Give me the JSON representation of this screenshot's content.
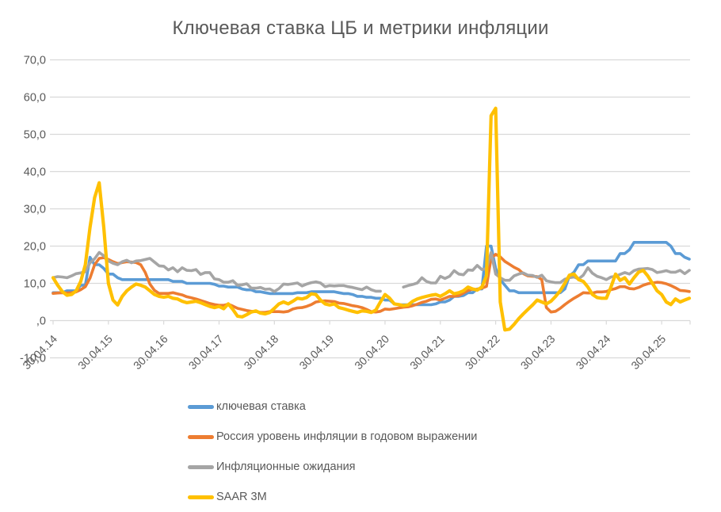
{
  "colors": {
    "blue": "#5B9BD5",
    "orange": "#ED7D31",
    "gray": "#A5A5A5",
    "yellow": "#FFC000",
    "gridline": "#D9D9D9",
    "tick": "#D9D9D9",
    "axis_text": "#595959",
    "title_text": "#595959"
  },
  "chart_data": {
    "type": "line",
    "title": "Ключевая ставка ЦБ и метрики инфляции",
    "grid": "horizontal",
    "legend_position": "bottom-left",
    "ylim": [
      -10,
      70
    ],
    "x_axis": {
      "labels": [
        "30.04.14",
        "30.04.15",
        "30.04.16",
        "30.04.17",
        "30.04.18",
        "30.04.19",
        "30.04.20",
        "30.04.21",
        "30.04.22",
        "30.04.23",
        "30.04.24",
        "30.04.25"
      ],
      "note": "monthly points from 30.04.14 to 30.10.25, one label per year"
    },
    "y_axis": {
      "values": [
        70,
        60,
        50,
        40,
        30,
        20,
        10,
        0,
        -10
      ],
      "labels": [
        "70,0",
        "60,0",
        "50,0",
        "40,0",
        "30,0",
        "20,0",
        "10,0",
        ",0",
        "-10,0"
      ]
    },
    "series": [
      {
        "name": "ключевая ставка",
        "color": "#5B9BD5",
        "values": [
          7.5,
          7.5,
          7.5,
          8,
          8,
          8,
          9.5,
          9.5,
          17,
          15,
          15,
          14,
          12.5,
          12.5,
          11.5,
          11,
          11,
          11,
          11,
          11,
          11,
          11,
          11,
          11,
          11,
          11,
          10.5,
          10.5,
          10.5,
          10,
          10,
          10,
          10,
          10,
          10,
          9.75,
          9.25,
          9.25,
          9,
          9,
          9,
          8.5,
          8.25,
          8.25,
          7.75,
          7.75,
          7.5,
          7.25,
          7.25,
          7.25,
          7.25,
          7.25,
          7.25,
          7.5,
          7.5,
          7.5,
          7.75,
          7.75,
          7.75,
          7.75,
          7.75,
          7.75,
          7.5,
          7.25,
          7.25,
          7,
          6.5,
          6.5,
          6.25,
          6.25,
          6,
          6,
          5.5,
          5.5,
          4.5,
          4.25,
          4.25,
          4.25,
          4.25,
          4.25,
          4.25,
          4.25,
          4.25,
          4.5,
          5,
          5,
          5.5,
          6.5,
          6.5,
          6.75,
          7.5,
          7.5,
          8.5,
          8.5,
          20,
          20,
          14,
          11,
          9.5,
          8,
          8,
          7.5,
          7.5,
          7.5,
          7.5,
          7.5,
          7.5,
          7.5,
          7.5,
          7.5,
          7.5,
          8.5,
          12,
          13,
          15,
          15,
          16,
          16,
          16,
          16,
          16,
          16,
          16,
          18,
          18,
          19,
          21,
          21,
          21,
          21,
          21,
          21,
          21,
          21,
          20,
          18,
          18,
          17,
          16.5
        ]
      },
      {
        "name": "Россия уровень инфляции в годовом выражении",
        "color": "#ED7D31",
        "values": [
          7.3,
          7.4,
          7.5,
          7.4,
          7.5,
          7.7,
          8.3,
          9.1,
          11.4,
          15.0,
          16.7,
          16.9,
          16.4,
          15.8,
          15.3,
          15.6,
          15.8,
          15.7,
          15.6,
          15.0,
          12.9,
          9.8,
          8.1,
          7.3,
          7.3,
          7.3,
          7.5,
          7.2,
          6.9,
          6.4,
          6.1,
          5.8,
          5.4,
          5.0,
          4.6,
          4.3,
          4.1,
          4.1,
          4.4,
          3.9,
          3.3,
          3.0,
          2.7,
          2.5,
          2.5,
          2.2,
          2.2,
          2.4,
          2.4,
          2.4,
          2.3,
          2.5,
          3.1,
          3.4,
          3.5,
          3.8,
          4.3,
          5.0,
          5.2,
          5.3,
          5.2,
          5.1,
          4.7,
          4.6,
          4.3,
          4.0,
          3.8,
          3.5,
          3.0,
          2.4,
          2.3,
          2.5,
          3.1,
          3.0,
          3.2,
          3.4,
          3.6,
          3.7,
          4.0,
          4.4,
          4.9,
          5.2,
          5.7,
          5.8,
          5.5,
          6.0,
          6.5,
          6.5,
          6.7,
          7.4,
          8.1,
          8.4,
          8.4,
          8.7,
          9.2,
          16.7,
          17.8,
          17.1,
          15.9,
          15.1,
          14.3,
          13.7,
          12.6,
          12.0,
          11.9,
          11.8,
          11.0,
          3.5,
          2.3,
          2.5,
          3.3,
          4.3,
          5.2,
          6.0,
          6.7,
          7.5,
          7.4,
          7.4,
          7.7,
          7.7,
          7.8,
          8.3,
          8.6,
          9.1,
          9.1,
          8.6,
          8.5,
          8.9,
          9.5,
          9.9,
          10.1,
          10.3,
          10.2,
          9.9,
          9.4,
          8.8,
          8.1,
          8.0,
          7.8
        ]
      },
      {
        "name": "Инфляционные ожидания",
        "color": "#A5A5A5",
        "values": [
          11.5,
          11.8,
          11.7,
          11.5,
          12.0,
          12.6,
          12.8,
          13.1,
          15.5,
          16.6,
          18.3,
          17.4,
          16.0,
          15.4,
          15.0,
          15.8,
          16.2,
          15.5,
          16.0,
          16.1,
          16.4,
          16.7,
          15.7,
          14.7,
          14.6,
          13.6,
          14.2,
          13.1,
          14.2,
          13.5,
          13.4,
          13.7,
          12.4,
          12.9,
          12.9,
          11.2,
          11.0,
          10.3,
          10.3,
          10.7,
          9.5,
          9.6,
          9.9,
          8.7,
          8.7,
          8.9,
          8.4,
          8.5,
          7.8,
          8.6,
          9.8,
          9.7,
          9.9,
          10.1,
          9.3,
          9.8,
          10.2,
          10.4,
          10.1,
          9.1,
          9.4,
          9.3,
          9.4,
          9.4,
          9.1,
          8.9,
          8.6,
          8.3,
          9.0,
          8.3,
          7.9,
          7.9,
          null,
          null,
          null,
          null,
          9.0,
          9.4,
          9.7,
          10.1,
          11.5,
          10.5,
          10.1,
          10.1,
          11.9,
          11.3,
          11.9,
          13.4,
          12.5,
          12.3,
          13.6,
          13.5,
          14.8,
          13.7,
          14.0,
          18.3,
          12.5,
          11.5,
          10.8,
          10.8,
          12.0,
          12.5,
          12.8,
          12.2,
          12.1,
          11.6,
          12.2,
          10.7,
          10.4,
          10.2,
          10.2,
          11.1,
          11.5,
          11.7,
          11.2,
          12.2,
          14.2,
          12.7,
          11.9,
          11.5,
          11.0,
          11.7,
          11.9,
          12.4,
          12.9,
          12.5,
          13.4,
          13.8,
          13.9,
          14.0,
          13.7,
          12.9,
          13.1,
          13.4,
          13.0,
          13.0,
          13.5,
          12.6,
          13.5
        ]
      },
      {
        "name": "SAAR 3M",
        "color": "#FFC000",
        "values": [
          11.5,
          9.5,
          7.8,
          6.8,
          7.0,
          8.0,
          10.5,
          15.0,
          25.0,
          33.0,
          37.0,
          25.0,
          10.0,
          5.5,
          4.2,
          6.5,
          8.0,
          9.0,
          9.8,
          9.5,
          9.0,
          8.0,
          7.0,
          6.5,
          6.3,
          6.5,
          6.0,
          5.8,
          5.2,
          4.8,
          5.0,
          5.2,
          4.8,
          4.3,
          3.8,
          3.5,
          3.8,
          3.2,
          4.5,
          3.0,
          1.2,
          1.0,
          1.6,
          2.3,
          2.6,
          2.0,
          1.8,
          2.2,
          3.3,
          4.5,
          5.0,
          4.5,
          5.2,
          6.0,
          5.8,
          6.2,
          7.2,
          7.0,
          5.5,
          4.5,
          4.2,
          4.5,
          3.5,
          3.2,
          2.8,
          2.5,
          2.2,
          2.6,
          2.5,
          2.2,
          2.8,
          5.0,
          7.0,
          6.0,
          4.5,
          4.3,
          4.0,
          4.2,
          5.2,
          5.8,
          6.2,
          6.5,
          6.8,
          7.0,
          6.5,
          7.2,
          8.0,
          7.2,
          7.5,
          8.0,
          9.0,
          8.5,
          8.2,
          9.0,
          12.0,
          55.0,
          57.0,
          5.0,
          -2.5,
          -2.3,
          -1.0,
          0.5,
          1.8,
          3.0,
          4.2,
          5.5,
          5.0,
          4.5,
          5.2,
          6.5,
          8.0,
          10.0,
          12.2,
          12.5,
          11.0,
          10.5,
          9.0,
          7.0,
          6.2,
          6.0,
          6.0,
          9.0,
          12.5,
          10.8,
          11.5,
          9.8,
          11.5,
          13.0,
          13.5,
          12.0,
          10.0,
          8.0,
          7.0,
          5.0,
          4.3,
          5.8,
          5.0,
          5.5,
          6.0
        ]
      }
    ]
  }
}
